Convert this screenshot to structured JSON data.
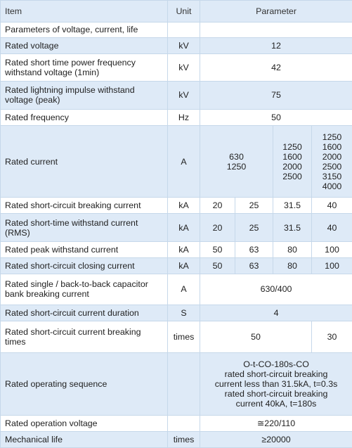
{
  "header": {
    "item": "Item",
    "unit": "Unit",
    "parameter": "Parameter"
  },
  "rows": {
    "section": {
      "label": "Parameters of voltage, current, life"
    },
    "rated_voltage": {
      "label": "Rated voltage",
      "unit": "kV",
      "value": "12"
    },
    "power_freq": {
      "label": "Rated short time power frequency withstand voltage (1min)",
      "unit": "kV",
      "value": "42"
    },
    "lightning": {
      "label": "Rated lightning impulse withstand voltage (peak)",
      "unit": "kV",
      "value": "75"
    },
    "frequency": {
      "label": "Rated frequency",
      "unit": "Hz",
      "value": "50"
    },
    "rated_current": {
      "label": "Rated current",
      "unit": "A",
      "col_a": "630\n1250",
      "col_b": "1250\n1600\n2000\n2500",
      "col_c": "1250\n1600\n2000\n2500\n3150\n4000"
    },
    "breaking_current": {
      "label": "Rated short-circuit breaking current",
      "unit": "kA",
      "values": [
        "20",
        "25",
        "31.5",
        "40"
      ]
    },
    "short_time_withstand": {
      "label": "Rated short-time withstand current (RMS)",
      "unit": "kA",
      "values": [
        "20",
        "25",
        "31.5",
        "40"
      ]
    },
    "peak_withstand": {
      "label": "Rated peak withstand current",
      "unit": "kA",
      "values": [
        "50",
        "63",
        "80",
        "100"
      ]
    },
    "closing_current": {
      "label": "Rated short-circuit closing current",
      "unit": "kA",
      "values": [
        "50",
        "63",
        "80",
        "100"
      ]
    },
    "capacitor": {
      "label": "Rated single / back-to-back capacitor bank breaking current",
      "unit": "A",
      "value": "630/400"
    },
    "duration": {
      "label": "Rated short-circuit current duration",
      "unit": "S",
      "value": "4"
    },
    "breaking_times": {
      "label": "Rated short-circuit current breaking times",
      "unit": "times",
      "values": [
        "50",
        "30"
      ]
    },
    "operating_sequence": {
      "label": "Rated operating sequence",
      "unit": "",
      "value": "O-t-CO-180s-CO\nrated short-circuit breaking\ncurrent less than 31.5kA, t=0.3s\nrated short-circuit breaking\ncurrent 40kA, t=180s"
    },
    "operation_voltage": {
      "label": "Rated operation voltage",
      "unit": "",
      "value": "≅220/110"
    },
    "mechanical_life": {
      "label": "Mechanical life",
      "unit": "times",
      "value": "≥20000"
    }
  }
}
